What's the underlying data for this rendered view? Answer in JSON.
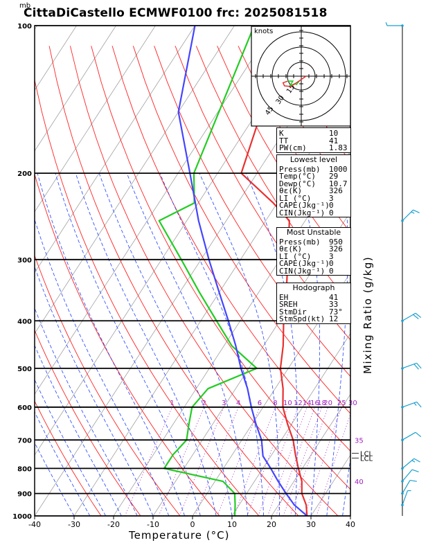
{
  "header": {
    "unit_top": "mb",
    "title": "CittaDiCastello ECMWF0100 frc: 2025081518"
  },
  "axes": {
    "xlabel": "Temperature (°C)",
    "right_label": "Mixing Ratio (g/kg)",
    "hodograph_unit": "knots",
    "hodograph_ring_labels": [
      "15",
      "30",
      "45"
    ]
  },
  "chart_data": {
    "type": "line",
    "title": "CittaDiCastello ECMWF0100 frc: 2025081518",
    "xlabel": "Temperature (°C)",
    "ylabel": "mb",
    "x_ticks": [
      -40,
      -30,
      -20,
      -10,
      0,
      10,
      20,
      30,
      40
    ],
    "y_ticks": [
      100,
      200,
      300,
      400,
      500,
      600,
      700,
      800,
      900,
      1000
    ],
    "xlim": [
      -40,
      40
    ],
    "ylim": [
      1000,
      100
    ],
    "y_scale": "log",
    "mixing_ratio_labels": [
      "1",
      "2",
      "3",
      "4",
      "6",
      "8",
      "10",
      "12",
      "14",
      "16",
      "18",
      "20",
      "25",
      "30"
    ],
    "theta_e_labels": [
      {
        "text": "35",
        "p": 700
      },
      {
        "text": "40",
        "p": 850
      }
    ],
    "lcl_labels": [
      {
        "text": "LCL",
        "p": 745
      },
      {
        "text": "LCL",
        "p": 762
      }
    ],
    "series": [
      {
        "color": "#e83030",
        "points": [
          [
            29,
            1000
          ],
          [
            27,
            950
          ],
          [
            24,
            900
          ],
          [
            22,
            850
          ],
          [
            19,
            800
          ],
          [
            16,
            750
          ],
          [
            13,
            700
          ],
          [
            9,
            650
          ],
          [
            5,
            600
          ],
          [
            2,
            550
          ],
          [
            -2,
            500
          ],
          [
            -5,
            450
          ],
          [
            -9,
            400
          ],
          [
            -13,
            350
          ],
          [
            -18,
            300
          ],
          [
            -24,
            250
          ],
          [
            -31,
            230
          ],
          [
            -44,
            200
          ],
          [
            -56,
            100
          ]
        ]
      },
      {
        "color": "#22cc22",
        "points": [
          [
            10.7,
            1000
          ],
          [
            9,
            950
          ],
          [
            7,
            900
          ],
          [
            2,
            850
          ],
          [
            -15,
            800
          ],
          [
            -15,
            750
          ],
          [
            -14,
            700
          ],
          [
            -16,
            650
          ],
          [
            -18,
            600
          ],
          [
            -17,
            550
          ],
          [
            -8,
            500
          ],
          [
            -18,
            450
          ],
          [
            -26,
            400
          ],
          [
            -35,
            350
          ],
          [
            -45,
            300
          ],
          [
            -57,
            250
          ],
          [
            -51,
            230
          ],
          [
            -56,
            200
          ],
          [
            -65,
            100
          ]
        ]
      },
      {
        "color": "#4444ff",
        "points": [
          [
            29,
            1000
          ],
          [
            24,
            950
          ],
          [
            20,
            900
          ],
          [
            16,
            850
          ],
          [
            12,
            800
          ],
          [
            8,
            755
          ],
          [
            5,
            700
          ],
          [
            1,
            650
          ],
          [
            -3,
            600
          ],
          [
            -7,
            550
          ],
          [
            -12,
            500
          ],
          [
            -17,
            450
          ],
          [
            -23,
            400
          ],
          [
            -30,
            350
          ],
          [
            -38,
            300
          ],
          [
            -47,
            250
          ],
          [
            -57,
            200
          ],
          [
            -70,
            150
          ],
          [
            -80,
            100
          ]
        ]
      }
    ],
    "wind_barbs": [
      {
        "p": 100,
        "dir": 270,
        "speed_kt": 5
      },
      {
        "p": 250,
        "dir": 45,
        "speed_kt": 15
      },
      {
        "p": 400,
        "dir": 60,
        "speed_kt": 20
      },
      {
        "p": 500,
        "dir": 70,
        "speed_kt": 20
      },
      {
        "p": 600,
        "dir": 70,
        "speed_kt": 15
      },
      {
        "p": 700,
        "dir": 60,
        "speed_kt": 10
      },
      {
        "p": 800,
        "dir": 50,
        "speed_kt": 15
      },
      {
        "p": 850,
        "dir": 40,
        "speed_kt": 10
      },
      {
        "p": 900,
        "dir": 30,
        "speed_kt": 10
      },
      {
        "p": 950,
        "dir": 20,
        "speed_kt": 5
      }
    ]
  },
  "indices": {
    "top": [
      {
        "k": "K",
        "v": "10"
      },
      {
        "k": "TT",
        "v": "41"
      },
      {
        "k": "PW(cm)",
        "v": "1.83"
      }
    ],
    "lowest_title": "Lowest level",
    "lowest": [
      {
        "k": "Press(mb)",
        "v": "1000"
      },
      {
        "k": "Temp(°C)",
        "v": "29"
      },
      {
        "k": "Dewp(°C)",
        "v": "10.7"
      },
      {
        "k": "θε(K)",
        "v": "326"
      },
      {
        "k": "LI (°C)",
        "v": "3"
      },
      {
        "k": "CAPE(Jkg⁻¹)",
        "v": "0"
      },
      {
        "k": "CIN(Jkg⁻¹)",
        "v": "0"
      }
    ],
    "unstable_title": "Most Unstable",
    "unstable": [
      {
        "k": "Press(mb)",
        "v": "950"
      },
      {
        "k": "θε(K)",
        "v": "326"
      },
      {
        "k": "LI (°C)",
        "v": "3"
      },
      {
        "k": "CAPE(Jkg⁻¹)",
        "v": "0"
      },
      {
        "k": "CIN(Jkg⁻¹)",
        "v": "0"
      }
    ],
    "hodo_title": "Hodograph",
    "hodo": [
      {
        "k": "EH",
        "v": "41"
      },
      {
        "k": "SREH",
        "v": "33"
      },
      {
        "k": "StmDir",
        "v": "73°"
      },
      {
        "k": "StmSpd(kt)",
        "v": "12"
      }
    ]
  },
  "colors": {
    "temperature": "#e83030",
    "dewpoint": "#22cc22",
    "parcel": "#4444ff",
    "isotherm_gray": "#a0a0a0",
    "dry_adiabat": "#ff2020",
    "moist_adiabat": "#2040ff",
    "mixing_ratio": "#a020c0"
  }
}
